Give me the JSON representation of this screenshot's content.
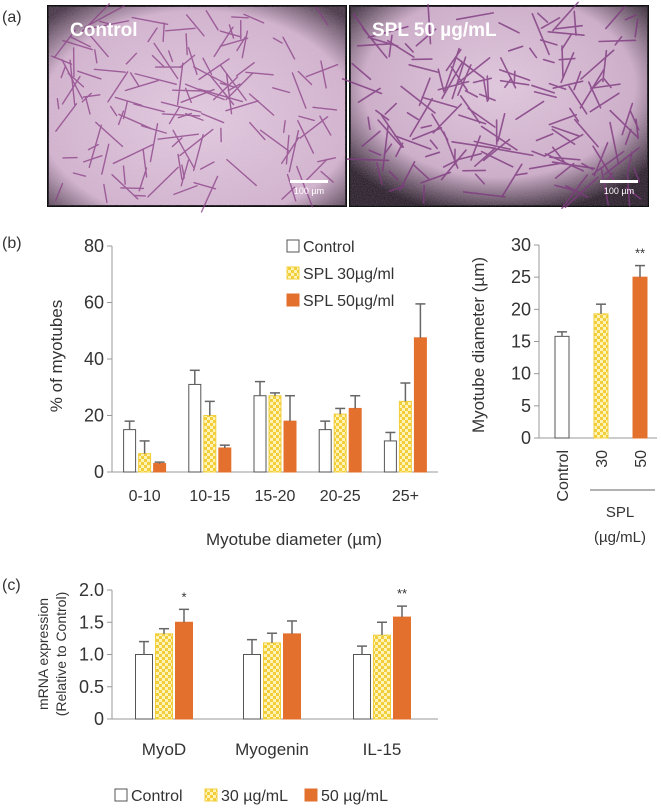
{
  "panel_labels": {
    "a": "(a)",
    "b": "(b)",
    "c": "(c)"
  },
  "micrographs": [
    {
      "label": "Control",
      "scale_bar": "100 µm"
    },
    {
      "label": "SPL 50 µg/mL",
      "scale_bar": "100 µm"
    }
  ],
  "colors": {
    "control": "#ffffff",
    "spl30": "#f2cf3a",
    "spl50": "#e3702d",
    "error": "#666666",
    "axis": "#999999"
  },
  "chart_data": [
    {
      "id": "b-left",
      "type": "bar",
      "categories": [
        "0-10",
        "10-15",
        "15-20",
        "20-25",
        "25+"
      ],
      "series": [
        {
          "name": "Control",
          "values": [
            15,
            31,
            27,
            15,
            11
          ],
          "errors": [
            3,
            5,
            5,
            3,
            3
          ]
        },
        {
          "name": "SPL 30µg/ml",
          "values": [
            6.5,
            20,
            27,
            20.5,
            25
          ],
          "errors": [
            4.5,
            5,
            1,
            2,
            6.5
          ]
        },
        {
          "name": "SPL 50µg/ml",
          "values": [
            3,
            8.5,
            18,
            22.5,
            47.5
          ],
          "errors": [
            0.5,
            1,
            9,
            4.5,
            12
          ]
        }
      ],
      "xlabel": "Myotube diameter (µm)",
      "ylabel": "% of myotubes",
      "ylim": [
        0,
        80
      ],
      "yticks": [
        0,
        20,
        40,
        60,
        80
      ],
      "legend_placement": "top-right",
      "grid": false
    },
    {
      "id": "b-right",
      "type": "bar",
      "categories": [
        "Control",
        "30",
        "50"
      ],
      "values": [
        15.8,
        19.3,
        25
      ],
      "errors": [
        0.7,
        1.5,
        1.8
      ],
      "significance": [
        "",
        "",
        "**"
      ],
      "group_label": "SPL",
      "group_unit": "(µg/mL)",
      "ylabel": "Myotube diameter (µm)",
      "ylim": [
        0,
        30
      ],
      "yticks": [
        0,
        5,
        10,
        15,
        20,
        25,
        30
      ],
      "grid": false
    },
    {
      "id": "c",
      "type": "bar",
      "categories": [
        "MyoD",
        "Myogenin",
        "IL-15"
      ],
      "series": [
        {
          "name": "Control",
          "values": [
            1.0,
            1.0,
            1.0
          ],
          "errors": [
            0.2,
            0.23,
            0.13
          ],
          "significance": [
            "",
            "",
            ""
          ]
        },
        {
          "name": "30 µg/mL",
          "values": [
            1.32,
            1.18,
            1.3
          ],
          "errors": [
            0.08,
            0.15,
            0.2
          ],
          "significance": [
            "",
            "",
            ""
          ]
        },
        {
          "name": "50 µg/mL",
          "values": [
            1.5,
            1.32,
            1.58
          ],
          "errors": [
            0.2,
            0.2,
            0.17
          ],
          "significance": [
            "*",
            "",
            "**"
          ]
        }
      ],
      "ylabel_lines": [
        "mRNA expression",
        "(Relative to Control)"
      ],
      "ylim": [
        0,
        2.0
      ],
      "yticks": [
        "0",
        "0.5",
        "1.0",
        "1.5",
        "2.0"
      ],
      "legend_placement": "bottom",
      "grid": false
    }
  ]
}
